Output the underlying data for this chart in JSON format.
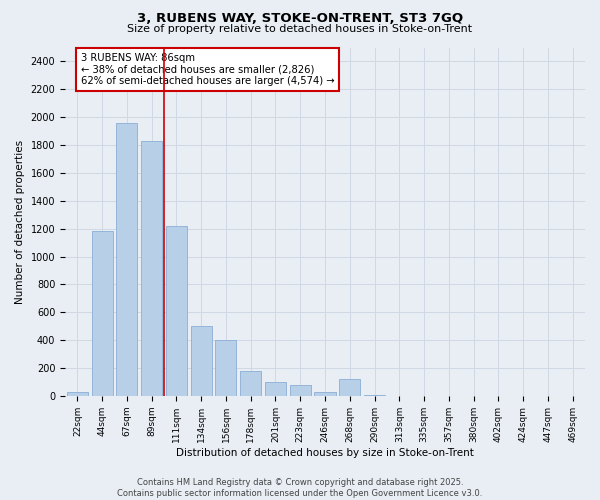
{
  "title_line1": "3, RUBENS WAY, STOKE-ON-TRENT, ST3 7GQ",
  "title_line2": "Size of property relative to detached houses in Stoke-on-Trent",
  "xlabel": "Distribution of detached houses by size in Stoke-on-Trent",
  "ylabel": "Number of detached properties",
  "bar_labels": [
    "22sqm",
    "44sqm",
    "67sqm",
    "89sqm",
    "111sqm",
    "134sqm",
    "156sqm",
    "178sqm",
    "201sqm",
    "223sqm",
    "246sqm",
    "268sqm",
    "290sqm",
    "313sqm",
    "335sqm",
    "357sqm",
    "380sqm",
    "402sqm",
    "424sqm",
    "447sqm",
    "469sqm"
  ],
  "bar_values": [
    30,
    1180,
    1960,
    1830,
    1220,
    500,
    400,
    175,
    100,
    75,
    30,
    120,
    5,
    2,
    1,
    1,
    1,
    1,
    1,
    1,
    1
  ],
  "bar_color": "#b8cfe8",
  "bar_edgecolor": "#8aafd4",
  "vline_x": 3.5,
  "vline_color": "#cc0000",
  "annotation_box_text": "3 RUBENS WAY: 86sqm\n← 38% of detached houses are smaller (2,826)\n62% of semi-detached houses are larger (4,574) →",
  "annotation_box_color": "#cc0000",
  "ylim": [
    0,
    2500
  ],
  "yticks": [
    0,
    200,
    400,
    600,
    800,
    1000,
    1200,
    1400,
    1600,
    1800,
    2000,
    2200,
    2400
  ],
  "grid_color": "#d0d8e4",
  "background_color": "#e8eef4",
  "footer_line1": "Contains HM Land Registry data © Crown copyright and database right 2025.",
  "footer_line2": "Contains public sector information licensed under the Open Government Licence v3.0."
}
